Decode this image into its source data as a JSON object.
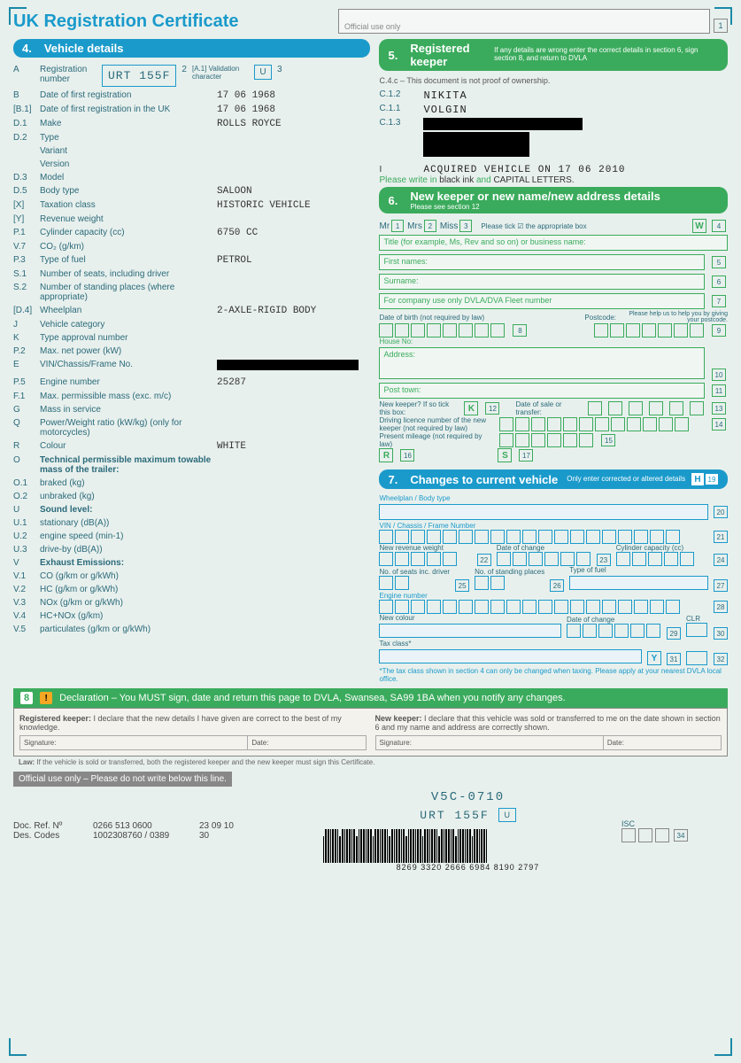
{
  "doc_title": "UK Registration Certificate",
  "official_use": "Official use only",
  "page": "1",
  "sec4": {
    "num": "4.",
    "title": "Vehicle details",
    "reg_lbl": "Registration number",
    "reg_code": "A",
    "reg": "URT 155F",
    "valid_num": "2",
    "valid_lbl": "[A.1] Validation character",
    "valid": "U",
    "valid_after": "3",
    "rows": [
      {
        "c": "B",
        "l": "Date of first registration",
        "v": "17 06 1968"
      },
      {
        "c": "[B.1]",
        "l": "Date of first registration in the UK",
        "v": "17 06 1968"
      },
      {
        "c": "D.1",
        "l": "Make",
        "v": "ROLLS ROYCE"
      },
      {
        "c": "D.2",
        "l": "Type",
        "v": ""
      },
      {
        "c": "",
        "l": "Variant",
        "v": ""
      },
      {
        "c": "",
        "l": "Version",
        "v": ""
      },
      {
        "c": "D.3",
        "l": "Model",
        "v": ""
      },
      {
        "c": "D.5",
        "l": "Body type",
        "v": "SALOON"
      },
      {
        "c": "[X]",
        "l": "Taxation class",
        "v": "HISTORIC VEHICLE"
      },
      {
        "c": "[Y]",
        "l": "Revenue weight",
        "v": ""
      },
      {
        "c": "P.1",
        "l": "Cylinder capacity (cc)",
        "v": "6750 CC"
      },
      {
        "c": "V.7",
        "l": "CO₂ (g/km)",
        "v": ""
      },
      {
        "c": "P.3",
        "l": "Type of fuel",
        "v": "PETROL"
      },
      {
        "c": "S.1",
        "l": "Number of seats, including driver",
        "v": ""
      },
      {
        "c": "S.2",
        "l": "Number of standing places (where appropriate)",
        "v": ""
      },
      {
        "c": "[D.4]",
        "l": "Wheelplan",
        "v": "2-AXLE-RIGID BODY"
      },
      {
        "c": "J",
        "l": "Vehicle category",
        "v": ""
      },
      {
        "c": "K",
        "l": "Type approval number",
        "v": ""
      },
      {
        "c": "P.2",
        "l": "Max. net power (kW)",
        "v": ""
      },
      {
        "c": "E",
        "l": "VIN/Chassis/Frame No.",
        "v": "__REDACT__"
      },
      {
        "c": "P.5",
        "l": "Engine number",
        "v": "25287"
      },
      {
        "c": "F.1",
        "l": "Max. permissible mass (exc. m/c)",
        "v": ""
      },
      {
        "c": "G",
        "l": "Mass in service",
        "v": ""
      },
      {
        "c": "Q",
        "l": "Power/Weight ratio (kW/kg) (only for motorcycles)",
        "v": ""
      },
      {
        "c": "R",
        "l": "Colour",
        "v": "WHITE"
      },
      {
        "c": "O",
        "l": "Technical permissible maximum towable mass of the trailer:",
        "v": "",
        "bold": true
      },
      {
        "c": "O.1",
        "l": "braked (kg)",
        "v": ""
      },
      {
        "c": "O.2",
        "l": "unbraked (kg)",
        "v": ""
      },
      {
        "c": "U",
        "l": "Sound level:",
        "v": "",
        "bold": true
      },
      {
        "c": "U.1",
        "l": "stationary (dB(A))",
        "v": ""
      },
      {
        "c": "U.2",
        "l": "engine speed (min-1)",
        "v": ""
      },
      {
        "c": "U.3",
        "l": "drive-by (dB(A))",
        "v": ""
      },
      {
        "c": "V",
        "l": "Exhaust Emissions:",
        "v": "",
        "bold": true
      },
      {
        "c": "V.1",
        "l": "CO (g/km or g/kWh)",
        "v": ""
      },
      {
        "c": "V.2",
        "l": "HC (g/km or g/kWh)",
        "v": ""
      },
      {
        "c": "V.3",
        "l": "NOx (g/km or g/kWh)",
        "v": ""
      },
      {
        "c": "V.4",
        "l": "HC+NOx (g/km)",
        "v": ""
      },
      {
        "c": "V.5",
        "l": "particulates (g/km or g/kWh)",
        "v": ""
      }
    ]
  },
  "sec5": {
    "num": "5.",
    "title": "Registered keeper",
    "sub": "If any details are wrong enter the correct details in section 6, sign section 8, and return to DVLA",
    "proof": "C.4.c – This document is not proof of ownership.",
    "k12": "C.1.2",
    "k12v": "NIKITA",
    "k11": "C.1.1",
    "k11v": "VOLGIN",
    "k13": "C.1.3",
    "acq": "ACQUIRED VEHICLE ON   17 06 2010",
    "write1": "Please write in ",
    "write2": "black ink ",
    "write3": "and ",
    "write4": "CAPITAL LETTERS.",
    "I": "I"
  },
  "sec6": {
    "num": "6.",
    "title": "New keeper or new name/new address details",
    "sub": "Please see section 12",
    "mr": "Mr",
    "mrs": "Mrs",
    "miss": "Miss",
    "tick": "Please tick ☑ the appropriate box",
    "W": "W",
    "n4": "4",
    "title_lbl": "Title (for example, Ms, Rev and so on) or business name:",
    "first": "First names:",
    "n5": "5",
    "surname": "Surname:",
    "n6": "6",
    "company": "For company use only DVLA/DVA Fleet number",
    "n7": "7",
    "help": "Please help us to help you by giving your postcode.",
    "dob": "Date of birth (not required by law)",
    "postcode_l": "Postcode:",
    "dobph": "D D M M Y Y Y Y",
    "n8": "8",
    "n9": "9",
    "house": "House No:",
    "addr": "Address:",
    "n10": "10",
    "post_town": "Post town:",
    "n11": "11",
    "newk": "New keeper? If so tick this box:",
    "K": "K",
    "n12": "12",
    "dos": "Date of sale or transfer:",
    "n13": "13",
    "dln": "Driving licence number of the new keeper (not required by law)",
    "n14": "14",
    "mileage": "Present mileage (not required by law)",
    "n15": "15",
    "R": "R",
    "n16": "16",
    "S": "S",
    "n17": "17"
  },
  "sec7": {
    "num": "7.",
    "title": "Changes to current vehicle",
    "sub": "Only enter corrected or altered details",
    "H": "H",
    "n19": "19",
    "wheelplan": "Wheelplan / Body type",
    "n20": "20",
    "vin": "VIN / Chassis / Frame Number",
    "n21": "21",
    "revwt": "New revenue weight",
    "n22": "22",
    "doc": "Date of change",
    "n23": "23",
    "cyl": "Cylinder capacity (cc)",
    "n24": "24",
    "seats": "No. of seats inc. driver",
    "n25": "25",
    "stand": "No. of standing places",
    "n26": "26",
    "fuel": "Type of fuel",
    "n27": "27",
    "eng": "Engine number",
    "n28": "28",
    "colour": "New colour",
    "n29": "29",
    "doc2": "Date of change",
    "clr": "CLR",
    "n30": "30",
    "tax": "Tax class*",
    "Y": "Y",
    "n31": "31",
    "n32": "32",
    "note": "*The tax class shown in section 4 can only be changed when taxing. Please apply at your nearest DVLA local office."
  },
  "sec8": {
    "num": "8",
    "title": "Declaration  –  You MUST sign, date and return this page to DVLA, Swansea, SA99 1BA when you notify any changes.",
    "rk_b": "Registered keeper:",
    "rk": " I declare that the new details I have given are correct to the best of my knowledge.",
    "nk_b": "New keeper:",
    "nk": " I declare that this vehicle was sold or transferred to me on the date shown in section 6 and my name and address are correctly shown.",
    "sig": "Signature:",
    "date": "Date:",
    "law_b": "Law:",
    "law": " If the vehicle is sold or transferred, both the registered keeper and the new keeper must sign this Certificate."
  },
  "footer": {
    "off": "Official use only – Please do not write below this line.",
    "docref_l": "Doc. Ref. Nº",
    "docref1": "0266 513 0600",
    "docref2": "23 09 10",
    "des_l": "Des. Codes",
    "des1": "1002308760 / 0389",
    "des2": "30",
    "v5c": "V5C-0710",
    "reg": "URT 155F",
    "u": "U",
    "isc": "ISC",
    "n34": "34",
    "bc": "8269 3320 2666 6984 8190 2797"
  }
}
